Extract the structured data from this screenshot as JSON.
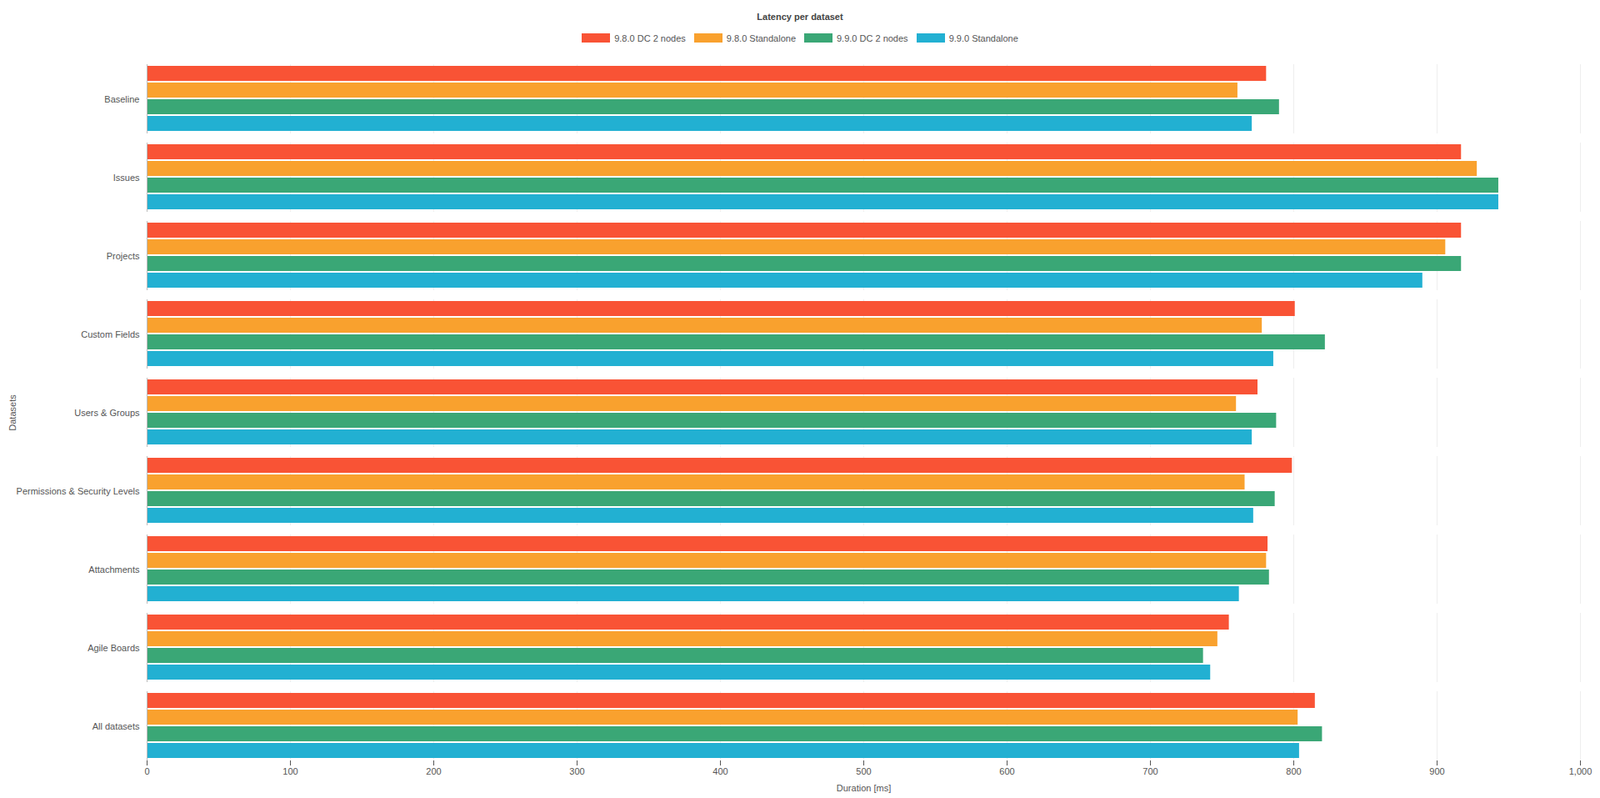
{
  "chart_data": {
    "type": "bar",
    "orientation": "horizontal",
    "title": "Latency per dataset",
    "x_label": "Duration [ms]",
    "y_label": "Datasets",
    "categories": [
      "Baseline",
      "Issues",
      "Projects",
      "Custom Fields",
      "Users & Groups",
      "Permissions & Security Levels",
      "Attachments",
      "Agile Boards",
      "All datasets"
    ],
    "series": [
      {
        "name": "9.8.0 DC 2 nodes",
        "color": "#f95335",
        "values": [
          781,
          917,
          917,
          801,
          775,
          799,
          782,
          755,
          815
        ]
      },
      {
        "name": "9.8.0 Standalone",
        "color": "#f9a12e",
        "values": [
          761,
          928,
          906,
          778,
          760,
          766,
          781,
          747,
          803
        ]
      },
      {
        "name": "9.9.0 DC 2 nodes",
        "color": "#3aa776",
        "values": [
          790,
          943,
          917,
          822,
          788,
          787,
          783,
          737,
          820
        ]
      },
      {
        "name": "9.9.0 Standalone",
        "color": "#22b0d2",
        "values": [
          771,
          943,
          890,
          786,
          771,
          772,
          762,
          742,
          804
        ]
      }
    ],
    "xlim": [
      0,
      1000
    ],
    "xticks": [
      0,
      100,
      200,
      300,
      400,
      500,
      600,
      700,
      800,
      900,
      1000
    ],
    "grid": true,
    "legend": "top"
  }
}
